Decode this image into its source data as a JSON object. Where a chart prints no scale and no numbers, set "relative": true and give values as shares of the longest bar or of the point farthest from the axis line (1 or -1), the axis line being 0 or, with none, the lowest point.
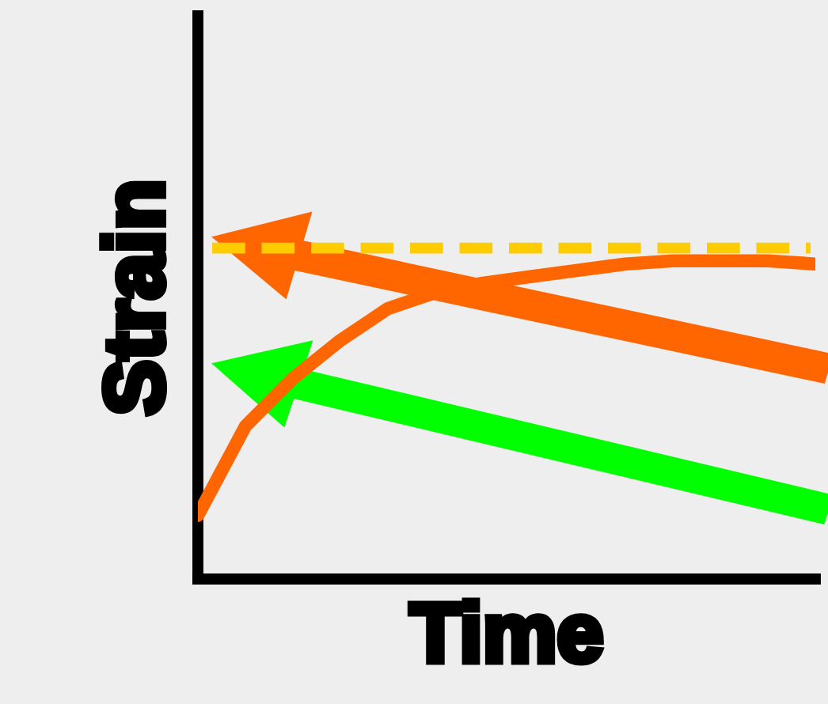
{
  "chart_data": {
    "type": "line",
    "relative": true,
    "xlabel": "Time",
    "ylabel": "Strain",
    "categories": [
      null,
      null,
      null,
      null,
      null,
      null,
      null,
      null,
      null,
      null,
      null,
      null,
      null,
      null
    ],
    "series": [
      {
        "color": "#ff6600",
        "values": [
          0.2,
          0.48,
          0.63,
          0.75,
          0.85,
          0.9,
          0.93,
          0.95,
          0.97,
          0.99,
          1.0,
          1.0,
          1.0,
          0.99
        ]
      }
    ],
    "ref_lines": [
      {
        "axis": "y",
        "value": 1.04,
        "color": "#ffcc00",
        "line_style": "dashed"
      }
    ],
    "tick_labels": false,
    "marker": "none",
    "line_style": "solid"
  }
}
